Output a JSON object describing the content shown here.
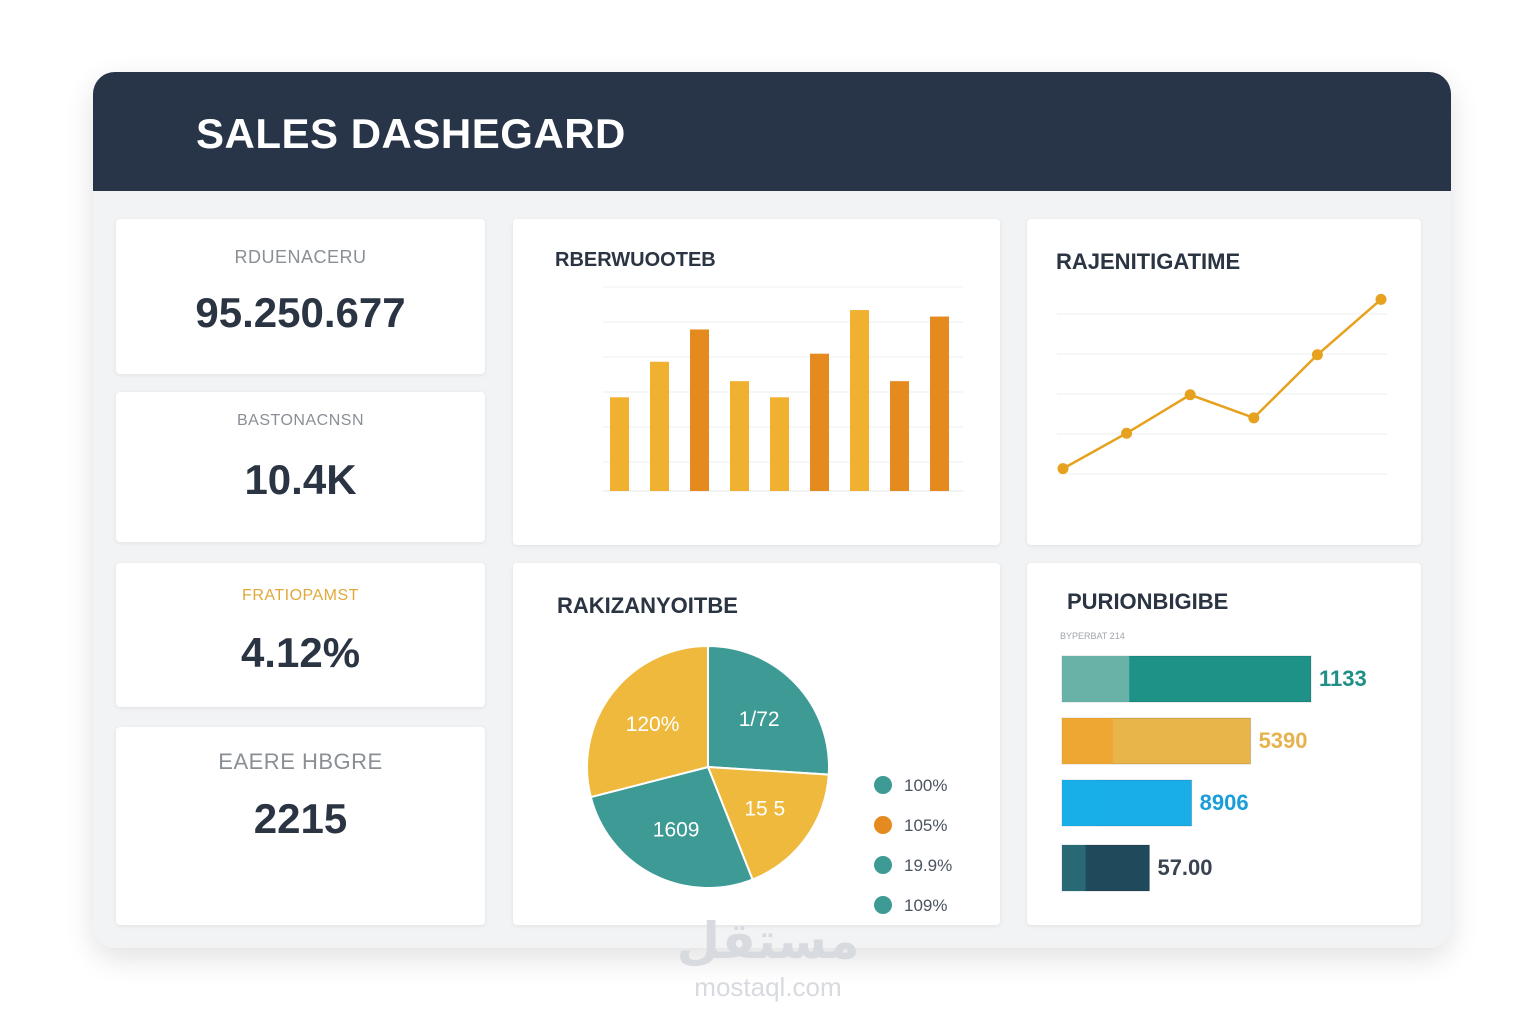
{
  "header": {
    "title": "SALES DASHEGARD"
  },
  "kpis": [
    {
      "label": "RDUENACERU",
      "value": "95.250.677"
    },
    {
      "label": "BASTONACNSN",
      "value": "10.4K"
    },
    {
      "label": "FRATIOPAMST",
      "value": "4.12%"
    },
    {
      "label": "EAERE HBGRE",
      "value": "2215"
    }
  ],
  "bar_card": {
    "title": "RBERWUOOTEB",
    "chart_data": {
      "type": "bar",
      "values": [
        58,
        80,
        100,
        68,
        58,
        85,
        112,
        68,
        108
      ],
      "ylim": [
        0,
        130
      ],
      "colors": [
        "#f0b030",
        "#f0b030",
        "#e58a1f",
        "#f0b030",
        "#f0b030",
        "#e58a1f",
        "#f0b030",
        "#e58a1f",
        "#e58a1f"
      ]
    }
  },
  "line_card": {
    "title": "RAJENITIGATIME",
    "chart_data": {
      "type": "line",
      "values": [
        10,
        33,
        58,
        43,
        84,
        120
      ],
      "ylim": [
        0,
        130
      ],
      "color": "#e6a21e"
    }
  },
  "pie_card": {
    "title": "RAKIZANYOITBE",
    "chart_data": {
      "type": "pie",
      "slices": [
        {
          "label": "1/72",
          "value": 26,
          "color": "#3d9a94"
        },
        {
          "label": "15 5",
          "value": 18,
          "color": "#efb93e"
        },
        {
          "label": "1609",
          "value": 27,
          "color": "#3d9a94"
        },
        {
          "label": "120%",
          "value": 29,
          "color": "#efb93e"
        }
      ]
    },
    "legend": [
      {
        "label": "100%",
        "color": "#3d9a94"
      },
      {
        "label": "105%",
        "color": "#e58a1f"
      },
      {
        "label": "19.9%",
        "color": "#3d9a94"
      },
      {
        "label": "109%",
        "color": "#3d9a94"
      }
    ]
  },
  "hbar_card": {
    "title": "PURIONBIGIBE",
    "subtitle": "BYPERBAT 214",
    "chart_data": {
      "type": "bar",
      "orientation": "horizontal",
      "bars": [
        {
          "label": "1133",
          "value": 1133,
          "color": "#1f9288",
          "accent": "#76b7ae",
          "text_color": "#1f8f87"
        },
        {
          "label": "5390",
          "value": 858,
          "color": "#e8b54a",
          "accent": "#f0a430",
          "text_color": "#e6b24e"
        },
        {
          "label": "8906",
          "value": 590,
          "color": "#19aee8",
          "accent": "#19aee8",
          "text_color": "#1a9ed8"
        },
        {
          "label": "57.00",
          "value": 398,
          "color": "#1f4a5c",
          "accent": "#2b6e7a",
          "text_color": "#3a4450"
        }
      ],
      "xlim": [
        0,
        1133
      ]
    }
  },
  "watermark": {
    "logo": "مستقل",
    "url": "mostaql.com"
  }
}
